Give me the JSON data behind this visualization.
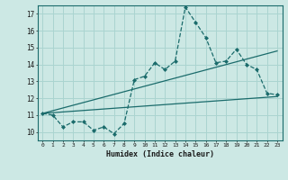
{
  "xlabel": "Humidex (Indice chaleur)",
  "ylabel": "",
  "bg_color": "#cce8e4",
  "grid_color": "#aad4d0",
  "line_color": "#1a6b6b",
  "xlim": [
    -0.5,
    23.5
  ],
  "ylim": [
    9.5,
    17.5
  ],
  "yticks": [
    10,
    11,
    12,
    13,
    14,
    15,
    16,
    17
  ],
  "xticks": [
    0,
    1,
    2,
    3,
    4,
    5,
    6,
    7,
    8,
    9,
    10,
    11,
    12,
    13,
    14,
    15,
    16,
    17,
    18,
    19,
    20,
    21,
    22,
    23
  ],
  "series1_x": [
    0,
    1,
    2,
    3,
    4,
    5,
    6,
    7,
    8,
    9,
    10,
    11,
    12,
    13,
    14,
    15,
    16,
    17,
    18,
    19,
    20,
    21,
    22,
    23
  ],
  "series1_y": [
    11.1,
    11.0,
    10.3,
    10.6,
    10.6,
    10.1,
    10.3,
    9.9,
    10.5,
    13.1,
    13.3,
    14.1,
    13.7,
    14.2,
    17.4,
    16.5,
    15.6,
    14.1,
    14.2,
    14.9,
    14.0,
    13.7,
    12.3,
    12.2
  ],
  "series2_x": [
    0,
    23
  ],
  "series2_y": [
    11.1,
    12.1
  ],
  "series3_x": [
    0,
    23
  ],
  "series3_y": [
    11.1,
    14.8
  ]
}
